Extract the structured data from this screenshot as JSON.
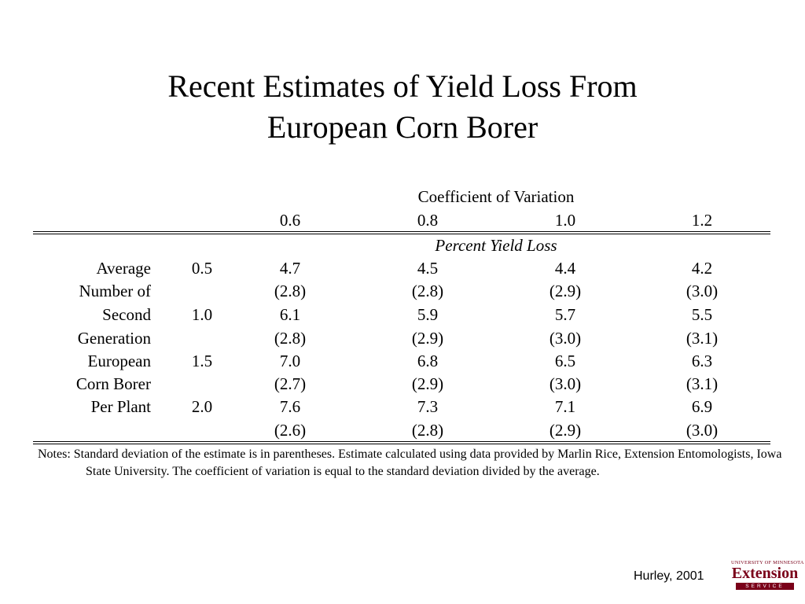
{
  "title": {
    "line1": "Recent Estimates of Yield Loss From",
    "line2": "European Corn Borer"
  },
  "table": {
    "super_header": "Coefficient of Variation",
    "cv_columns": [
      "0.6",
      "0.8",
      "1.0",
      "1.2"
    ],
    "subheader": "Percent Yield Loss",
    "row_labels": [
      "Average",
      "Number of",
      "Second",
      "Generation",
      "European",
      "Corn Borer",
      "Per Plant",
      ""
    ],
    "groups": [
      {
        "level": "0.5",
        "estimates": [
          "4.7",
          "4.5",
          "4.4",
          "4.2"
        ],
        "std_devs": [
          "(2.8)",
          "(2.8)",
          "(2.9)",
          "(3.0)"
        ]
      },
      {
        "level": "1.0",
        "estimates": [
          "6.1",
          "5.9",
          "5.7",
          "5.5"
        ],
        "std_devs": [
          "(2.8)",
          "(2.9)",
          "(3.0)",
          "(3.1)"
        ]
      },
      {
        "level": "1.5",
        "estimates": [
          "7.0",
          "6.8",
          "6.5",
          "6.3"
        ],
        "std_devs": [
          "(2.7)",
          "(2.9)",
          "(3.0)",
          "(3.1)"
        ]
      },
      {
        "level": "2.0",
        "estimates": [
          "7.6",
          "7.3",
          "7.1",
          "6.9"
        ],
        "std_devs": [
          "(2.6)",
          "(2.8)",
          "(2.9)",
          "(3.0)"
        ]
      }
    ]
  },
  "notes": "Notes: Standard deviation of the estimate is in parentheses.  Estimate calculated using data provided by Marlin Rice, Extension Entomologists, Iowa State University.  The coefficient of variation is equal to the standard deviation divided by the average.",
  "credit": "Hurley, 2001",
  "logo": {
    "university": "UNIVERSITY OF MINNESOTA",
    "name": "Extension",
    "service": "SERVICE"
  }
}
